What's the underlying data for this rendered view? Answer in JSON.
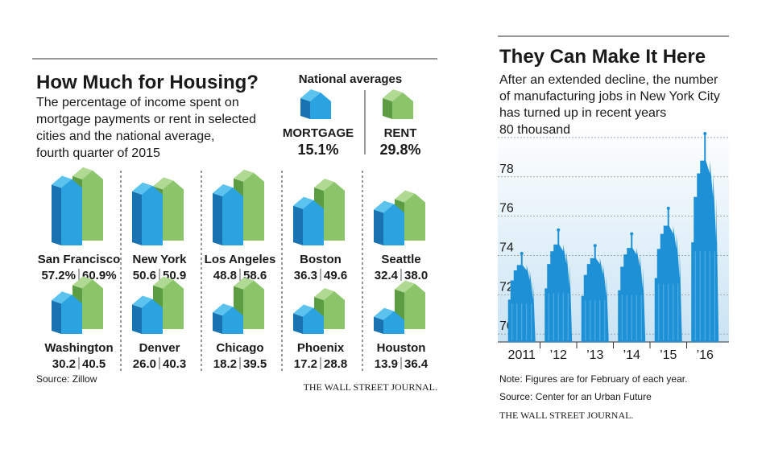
{
  "chart_data": [
    {
      "type": "house",
      "title": "How Much for Housing?",
      "subtitle": [
        "The percentage of income spent on",
        "mortgage payments or rent in selected",
        "cities and the national average,",
        "fourth quarter of 2015"
      ],
      "legend_title": "National averages",
      "categories": [
        "San Francisco",
        "New York",
        "Los Angeles",
        "Boston",
        "Seattle",
        "Washington",
        "Denver",
        "Chicago",
        "Phoenix",
        "Houston"
      ],
      "series": [
        {
          "name": "MORTGAGE",
          "color": "#1a7fc1",
          "national": 15.1,
          "national_label": "15.1%",
          "values": [
            57.2,
            50.6,
            48.8,
            36.3,
            32.4,
            30.2,
            26.0,
            18.2,
            17.2,
            13.9
          ],
          "value_labels": [
            "57.2%",
            "50.6",
            "48.8",
            "36.3",
            "32.4",
            "30.2",
            "26.0",
            "18.2",
            "17.2",
            "13.9"
          ]
        },
        {
          "name": "RENT",
          "color": "#2e8b3e",
          "national": 29.8,
          "national_label": "29.8%",
          "values": [
            60.9,
            50.9,
            58.6,
            49.6,
            38.0,
            40.5,
            40.3,
            39.5,
            28.8,
            36.4
          ],
          "value_labels": [
            "60.9%",
            "50.9",
            "58.6",
            "49.6",
            "38.0",
            "40.5",
            "40.3",
            "39.5",
            "28.8",
            "36.4"
          ]
        }
      ],
      "source": "Source: Zillow",
      "credit": "THE WALL STREET JOURNAL."
    },
    {
      "type": "bar",
      "title": "They Can Make It Here",
      "subtitle": [
        "After an extended decline, the number",
        "of manufacturing jobs in New York City",
        "has turned up in recent years"
      ],
      "categories": [
        "2011",
        "’12",
        "’13",
        "’14",
        "’15",
        "’16"
      ],
      "values": [
        74.1,
        75.3,
        74.5,
        75.1,
        76.4,
        80.2
      ],
      "color": "#1e90d6",
      "ylim": [
        69.6,
        80.65
      ],
      "yticks": [
        70,
        72,
        74,
        76,
        78,
        {
          "value": 80,
          "label": "80 thousand"
        }
      ],
      "grid": true,
      "note": "Note: Figures are for February of each year.",
      "source": "Source: Center for an Urban Future",
      "credit": "THE WALL STREET JOURNAL."
    }
  ]
}
